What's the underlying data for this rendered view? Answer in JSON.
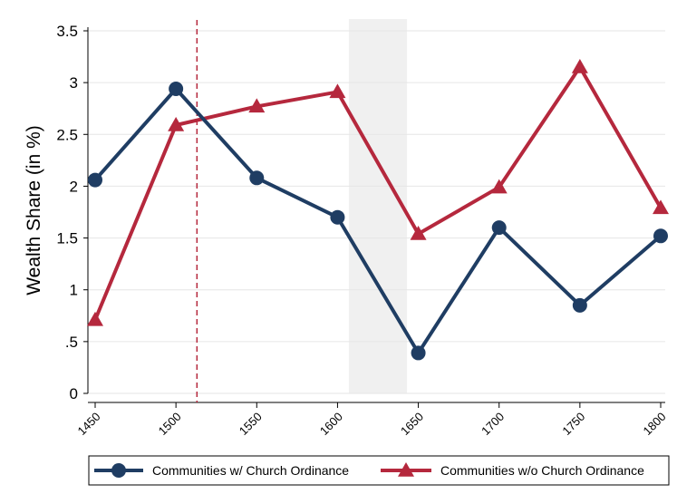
{
  "chart_data": {
    "type": "line",
    "x": [
      1450,
      1500,
      1550,
      1600,
      1650,
      1700,
      1750,
      1800
    ],
    "xticks": [
      "1450",
      "1500",
      "1550",
      "1600",
      "1650",
      "1700",
      "1750",
      "1800"
    ],
    "xlim": [
      1450,
      1800
    ],
    "ylim": [
      0,
      3.5
    ],
    "yticks": [
      {
        "value": 0,
        "label": "0"
      },
      {
        "value": 0.5,
        "label": ".5"
      },
      {
        "value": 1,
        "label": "1"
      },
      {
        "value": 1.5,
        "label": "1.5"
      },
      {
        "value": 2,
        "label": "2"
      },
      {
        "value": 2.5,
        "label": "2.5"
      },
      {
        "value": 3,
        "label": "3"
      },
      {
        "value": 3.5,
        "label": "3.5"
      }
    ],
    "ylabel": "Wealth Share (in %)",
    "xlabel": "",
    "title": "",
    "grid": "horizontal",
    "shaded_band": {
      "from": 1607,
      "to": 1643,
      "color": "#f0f0f0"
    },
    "vline": {
      "x": 1513,
      "color": "#b5283d",
      "style": "dashed"
    },
    "legend": "bottom",
    "series": [
      {
        "name": "Communities w/ Church Ordinance",
        "color": "#1f3d63",
        "marker": "circle",
        "values": [
          2.06,
          2.94,
          2.08,
          1.7,
          0.39,
          1.6,
          0.85,
          1.52
        ]
      },
      {
        "name": "Communities w/o Church Ordinance",
        "color": "#b5283d",
        "marker": "triangle",
        "values": [
          0.71,
          2.59,
          2.77,
          2.91,
          1.54,
          1.99,
          3.15,
          1.79
        ]
      }
    ]
  }
}
